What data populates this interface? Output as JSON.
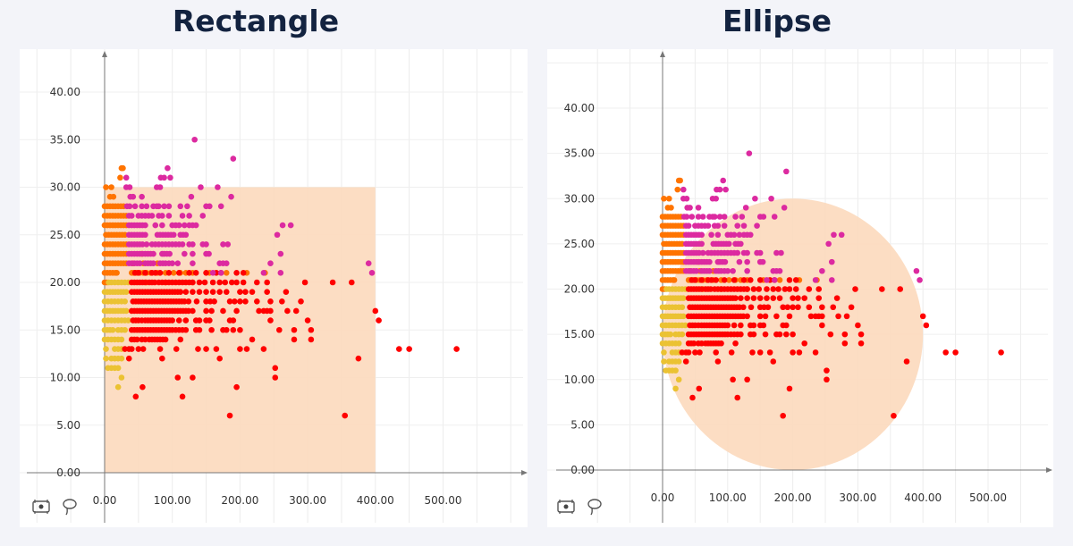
{
  "chart_data": [
    {
      "type": "scatter",
      "title": "Rectangle",
      "selection_shape": "rectangle",
      "selection": {
        "x": [
          0,
          400
        ],
        "y": [
          0,
          30
        ]
      },
      "xlim": [
        -100,
        600
      ],
      "ylim": [
        0,
        45
      ],
      "xticks": [
        "0.00",
        "100.00",
        "200.00",
        "300.00",
        "400.00",
        "500.00"
      ],
      "yticks": [
        "0.00",
        "5.00",
        "10.00",
        "15.00",
        "20.00",
        "25.00",
        "30.00",
        "35.00",
        "40.00"
      ],
      "grid": true
    },
    {
      "type": "scatter",
      "title": "Ellipse",
      "selection_shape": "ellipse",
      "selection": {
        "cx": 200,
        "cy": 15,
        "rx": 200,
        "ry": 15
      },
      "xlim": [
        -100,
        600
      ],
      "ylim": [
        0,
        45
      ],
      "xticks": [
        "0.00",
        "100.00",
        "200.00",
        "300.00",
        "400.00",
        "500.00"
      ],
      "yticks": [
        "0.00",
        "5.00",
        "10.00",
        "15.00",
        "20.00",
        "25.00",
        "30.00",
        "35.00",
        "40.00"
      ],
      "grid": true
    }
  ],
  "colors": {
    "yellow": "#ebc232",
    "orange": "#ff7400",
    "magenta": "#dc2aa0",
    "red": "#ff0000",
    "selection": "#fcd9bd"
  },
  "rows": [
    {
      "y": 35,
      "g": "magenta",
      "x": [
        133
      ]
    },
    {
      "y": 33,
      "g": "magenta",
      "x": [
        190
      ]
    },
    {
      "y": 32,
      "g": "orange",
      "x": [
        25,
        27
      ]
    },
    {
      "y": 32,
      "g": "magenta",
      "x": [
        93
      ]
    },
    {
      "y": 31,
      "g": "orange",
      "x": [
        23
      ]
    },
    {
      "y": 31,
      "g": "magenta",
      "x": [
        32,
        83,
        88,
        97
      ]
    },
    {
      "y": 30,
      "g": "orange",
      "x": [
        2,
        10
      ]
    },
    {
      "y": 30,
      "g": "magenta",
      "x": [
        32,
        37,
        77,
        82,
        142,
        167
      ]
    },
    {
      "y": 29,
      "g": "orange",
      "x": [
        8,
        13
      ]
    },
    {
      "y": 29,
      "g": "magenta",
      "x": [
        38,
        42,
        55,
        128,
        187
      ]
    },
    {
      "y": 28,
      "g": "orange",
      "x": [
        0,
        4,
        8,
        12,
        16,
        20,
        24,
        28
      ]
    },
    {
      "y": 28,
      "g": "magenta",
      "x": [
        33,
        37,
        45,
        55,
        62,
        72,
        77,
        80,
        88,
        95,
        112,
        122,
        150,
        155,
        172
      ]
    },
    {
      "y": 27,
      "g": "orange",
      "x": [
        0,
        4,
        8,
        12,
        16,
        20,
        24,
        28,
        32
      ]
    },
    {
      "y": 27,
      "g": "magenta",
      "x": [
        36,
        40,
        50,
        55,
        60,
        65,
        70,
        80,
        85,
        95,
        115,
        125,
        145
      ]
    },
    {
      "y": 26,
      "g": "orange",
      "x": [
        0,
        4,
        8,
        12,
        16,
        20,
        24,
        28,
        32
      ]
    },
    {
      "y": 26,
      "g": "magenta",
      "x": [
        36,
        40,
        44,
        48,
        52,
        56,
        60,
        75,
        85,
        100,
        105,
        110,
        118,
        125,
        130,
        135,
        263,
        275
      ]
    },
    {
      "y": 25,
      "g": "orange",
      "x": [
        2,
        6,
        10,
        14,
        18,
        22,
        26,
        30
      ]
    },
    {
      "y": 25,
      "g": "magenta",
      "x": [
        36,
        40,
        44,
        48,
        52,
        56,
        60,
        78,
        82,
        86,
        90,
        94,
        98,
        102,
        112,
        116,
        120,
        255
      ]
    },
    {
      "y": 24,
      "g": "orange",
      "x": [
        0,
        4,
        8,
        12,
        16,
        20,
        24,
        28,
        32
      ]
    },
    {
      "y": 24,
      "g": "magenta",
      "x": [
        36,
        40,
        44,
        48,
        52,
        56,
        62,
        70,
        75,
        80,
        85,
        90,
        95,
        100,
        105,
        110,
        115,
        125,
        130,
        145,
        150,
        175,
        182
      ]
    },
    {
      "y": 23,
      "g": "orange",
      "x": [
        0,
        4,
        8,
        12,
        16,
        20,
        24,
        28,
        32,
        55
      ]
    },
    {
      "y": 23,
      "g": "magenta",
      "x": [
        36,
        40,
        44,
        48,
        52,
        56,
        60,
        64,
        68,
        72,
        85,
        88,
        92,
        96,
        118,
        130,
        150,
        154,
        260
      ]
    },
    {
      "y": 22,
      "g": "orange",
      "x": [
        0,
        4,
        8,
        12,
        16,
        20,
        24,
        28,
        32,
        42,
        57,
        78
      ]
    },
    {
      "y": 22,
      "g": "magenta",
      "x": [
        36,
        40,
        44,
        48,
        52,
        60,
        64,
        68,
        72,
        82,
        86,
        90,
        95,
        100,
        108,
        130,
        170,
        175,
        180,
        245,
        390
      ]
    },
    {
      "y": 21,
      "g": "orange",
      "x": [
        0,
        4,
        8,
        12,
        16,
        18,
        40,
        43,
        48,
        52,
        57,
        62,
        68,
        78,
        90,
        102,
        112,
        120,
        130,
        155,
        180,
        210,
        237
      ]
    },
    {
      "y": 21,
      "g": "red",
      "x": [
        45,
        50,
        60,
        70,
        75,
        82,
        95,
        110,
        125,
        135,
        150,
        165,
        172,
        195,
        205
      ]
    },
    {
      "y": 21,
      "g": "magenta",
      "x": [
        160,
        172,
        235,
        260,
        395
      ]
    },
    {
      "y": 20,
      "g": "orange",
      "x": [
        0,
        3,
        62,
        90,
        130
      ]
    },
    {
      "y": 20,
      "g": "yellow",
      "x": [
        6,
        10,
        15,
        20,
        25,
        30,
        35
      ]
    },
    {
      "y": 20,
      "g": "red",
      "x": [
        40,
        44,
        48,
        52,
        56,
        60,
        66,
        70,
        74,
        80,
        85,
        90,
        95,
        100,
        105,
        110,
        115,
        120,
        125,
        130,
        140,
        148,
        160,
        170,
        178,
        188,
        195,
        205,
        225,
        240,
        296,
        337,
        365
      ]
    },
    {
      "y": 19,
      "g": "yellow",
      "x": [
        0,
        4,
        8,
        12,
        16,
        20,
        24,
        28,
        32
      ]
    },
    {
      "y": 19,
      "g": "red",
      "x": [
        40,
        44,
        48,
        52,
        56,
        60,
        64,
        68,
        72,
        76,
        80,
        84,
        88,
        92,
        96,
        100,
        104,
        108,
        112,
        120,
        130,
        140,
        150,
        160,
        170,
        180,
        200,
        208,
        218,
        240,
        268
      ]
    },
    {
      "y": 18,
      "g": "yellow",
      "x": [
        0,
        5,
        10,
        15,
        20,
        25,
        30
      ]
    },
    {
      "y": 18,
      "g": "red",
      "x": [
        42,
        46,
        50,
        54,
        58,
        62,
        66,
        70,
        74,
        78,
        82,
        86,
        90,
        94,
        98,
        102,
        106,
        110,
        114,
        118,
        124,
        136,
        150,
        156,
        162,
        185,
        192,
        200,
        208,
        225,
        245,
        262,
        290
      ]
    },
    {
      "y": 17,
      "g": "yellow",
      "x": [
        0,
        4,
        8,
        12,
        16,
        20,
        24,
        28,
        32
      ]
    },
    {
      "y": 17,
      "g": "red",
      "x": [
        40,
        44,
        48,
        52,
        56,
        60,
        64,
        68,
        72,
        76,
        80,
        84,
        88,
        92,
        96,
        100,
        104,
        108,
        112,
        116,
        120,
        124,
        130,
        150,
        158,
        175,
        195,
        228,
        235,
        240,
        245,
        270,
        283,
        400
      ]
    },
    {
      "y": 16,
      "g": "yellow",
      "x": [
        0,
        5,
        10,
        15,
        20,
        25,
        30,
        35
      ]
    },
    {
      "y": 16,
      "g": "red",
      "x": [
        42,
        46,
        50,
        55,
        60,
        64,
        68,
        72,
        76,
        80,
        84,
        88,
        92,
        96,
        100,
        110,
        120,
        135,
        140,
        150,
        155,
        185,
        190,
        245,
        300,
        405
      ]
    },
    {
      "y": 15,
      "g": "yellow",
      "x": [
        0,
        4,
        8,
        12,
        20,
        25,
        30
      ]
    },
    {
      "y": 15,
      "g": "red",
      "x": [
        40,
        44,
        48,
        52,
        56,
        60,
        64,
        68,
        72,
        76,
        80,
        84,
        88,
        92,
        96,
        100,
        105,
        110,
        115,
        120,
        135,
        140,
        158,
        175,
        180,
        190,
        200,
        258,
        280,
        305
      ]
    },
    {
      "y": 14,
      "g": "yellow",
      "x": [
        0,
        5,
        10,
        15,
        20,
        25
      ]
    },
    {
      "y": 14,
      "g": "red",
      "x": [
        40,
        44,
        48,
        55,
        60,
        66,
        70,
        74,
        78,
        82,
        86,
        90,
        112,
        218,
        280,
        305
      ]
    },
    {
      "y": 13,
      "g": "yellow",
      "x": [
        2,
        15,
        20,
        25
      ]
    },
    {
      "y": 13,
      "g": "red",
      "x": [
        30,
        36,
        40,
        50,
        57,
        82,
        106,
        138,
        150,
        165,
        200,
        210,
        235,
        435,
        450,
        520
      ]
    },
    {
      "y": 12,
      "g": "yellow",
      "x": [
        2,
        10,
        15,
        20,
        25
      ]
    },
    {
      "y": 12,
      "g": "red",
      "x": [
        36,
        85,
        170,
        375
      ]
    },
    {
      "y": 11,
      "g": "yellow",
      "x": [
        5,
        10,
        15,
        20
      ]
    },
    {
      "y": 11,
      "g": "red",
      "x": [
        252
      ]
    },
    {
      "y": 10,
      "g": "yellow",
      "x": [
        25
      ]
    },
    {
      "y": 10,
      "g": "red",
      "x": [
        108,
        130,
        252
      ]
    },
    {
      "y": 9,
      "g": "yellow",
      "x": [
        20
      ]
    },
    {
      "y": 9,
      "g": "red",
      "x": [
        56,
        195
      ]
    },
    {
      "y": 8,
      "g": "red",
      "x": [
        46,
        115
      ]
    },
    {
      "y": 6,
      "g": "red",
      "x": [
        185,
        355
      ]
    }
  ]
}
